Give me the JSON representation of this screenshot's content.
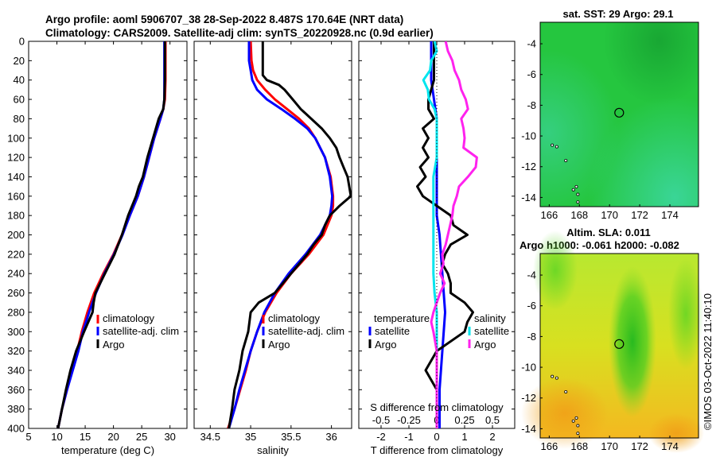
{
  "header": {
    "line1": "Argo profile: aoml 5906707_38 28-Sep-2022 8.487S 170.64E (NRT data)",
    "line2": "Climatology: CARS2009. Satellite-adj clim: synTS_20220928.nc (0.9d earlier)"
  },
  "colors": {
    "climatology": "#ff0000",
    "satellite": "#0000ff",
    "argo": "#000000",
    "sal_satellite": "#00e5ee",
    "sal_argo": "#ff22ee"
  },
  "chart_data": [
    {
      "type": "line",
      "id": "temperature",
      "xlabel": "temperature (deg C)",
      "ylabel": "",
      "xlim": [
        5,
        33
      ],
      "ylim": [
        0,
        400
      ],
      "xticks": [
        5,
        10,
        15,
        20,
        25,
        30
      ],
      "yticks": [
        0,
        20,
        40,
        60,
        80,
        100,
        120,
        140,
        160,
        180,
        200,
        220,
        240,
        260,
        280,
        300,
        320,
        340,
        360,
        380,
        400
      ],
      "legend": [
        "climatology",
        "satellite-adj. clim",
        "Argo"
      ],
      "legend_position": "bottom-right",
      "series": [
        {
          "name": "climatology",
          "color": "#ff0000",
          "depth": [
            0,
            20,
            40,
            60,
            70,
            80,
            100,
            120,
            140,
            160,
            180,
            200,
            220,
            240,
            260,
            280,
            300,
            320,
            340,
            360,
            380,
            400
          ],
          "values": [
            29.2,
            29.2,
            29.2,
            29.1,
            28.8,
            28.3,
            27.2,
            26.3,
            25.4,
            24.3,
            22.9,
            21.5,
            20.0,
            18.2,
            16.6,
            15.4,
            14.4,
            13.6,
            12.7,
            11.8,
            10.9,
            10.2
          ]
        },
        {
          "name": "satellite-adj. clim",
          "color": "#0000ff",
          "depth": [
            0,
            20,
            40,
            60,
            70,
            80,
            100,
            120,
            140,
            160,
            180,
            200,
            220,
            240,
            260,
            280,
            300,
            320,
            340,
            360,
            380,
            400
          ],
          "values": [
            29.0,
            29.0,
            29.0,
            29.0,
            28.8,
            28.3,
            27.2,
            26.3,
            25.4,
            24.3,
            22.9,
            21.6,
            20.1,
            18.4,
            16.9,
            15.7,
            14.6,
            13.8,
            12.8,
            11.8,
            10.9,
            10.2
          ]
        },
        {
          "name": "Argo",
          "color": "#000000",
          "depth": [
            0,
            20,
            40,
            60,
            70,
            80,
            100,
            120,
            140,
            150,
            160,
            180,
            200,
            220,
            240,
            260,
            270,
            280,
            300,
            320,
            340,
            360,
            380,
            400
          ],
          "values": [
            29.1,
            29.1,
            29.1,
            29.0,
            28.8,
            28.0,
            27.0,
            26.0,
            25.2,
            24.5,
            24.0,
            22.6,
            21.5,
            20.2,
            18.5,
            16.8,
            16.5,
            16.3,
            14.8,
            13.4,
            12.4,
            11.6,
            10.9,
            10.2
          ]
        }
      ]
    },
    {
      "type": "line",
      "id": "salinity",
      "xlabel": "salinity",
      "ylabel": "",
      "xlim": [
        34.3,
        36.25
      ],
      "ylim": [
        0,
        400
      ],
      "xticks": [
        34.5,
        35,
        35.5,
        36
      ],
      "legend": [
        "climatology",
        "satellite-adj. clim",
        "Argo"
      ],
      "legend_position": "bottom-right",
      "series": [
        {
          "name": "climatology",
          "color": "#ff0000",
          "depth": [
            0,
            20,
            30,
            40,
            50,
            60,
            70,
            80,
            90,
            100,
            120,
            140,
            160,
            170,
            180,
            200,
            220,
            240,
            260,
            280,
            300,
            320,
            340,
            360,
            380,
            400
          ],
          "values": [
            35.0,
            35.01,
            35.03,
            35.08,
            35.18,
            35.3,
            35.45,
            35.6,
            35.72,
            35.8,
            35.92,
            35.99,
            36.02,
            36.02,
            36.0,
            35.9,
            35.72,
            35.5,
            35.32,
            35.18,
            35.08,
            35.0,
            34.94,
            34.87,
            34.8,
            34.72
          ]
        },
        {
          "name": "satellite-adj. clim",
          "color": "#0000ff",
          "depth": [
            0,
            20,
            30,
            40,
            50,
            60,
            70,
            80,
            90,
            100,
            120,
            140,
            160,
            170,
            180,
            200,
            220,
            240,
            260,
            280,
            300,
            320,
            340,
            360,
            380,
            400
          ],
          "values": [
            34.98,
            34.98,
            35.0,
            35.02,
            35.08,
            35.2,
            35.38,
            35.55,
            35.7,
            35.8,
            35.92,
            35.98,
            36.01,
            36.0,
            35.98,
            35.86,
            35.68,
            35.47,
            35.3,
            35.17,
            35.08,
            35.0,
            34.93,
            34.86,
            34.8,
            34.73
          ]
        },
        {
          "name": "Argo",
          "color": "#000000",
          "depth": [
            0,
            20,
            35,
            40,
            45,
            50,
            60,
            70,
            80,
            90,
            100,
            110,
            120,
            130,
            140,
            150,
            160,
            170,
            180,
            190,
            200,
            210,
            220,
            240,
            260,
            270,
            280,
            300,
            320,
            340,
            360,
            380,
            400
          ],
          "values": [
            35.15,
            35.15,
            35.15,
            35.2,
            35.35,
            35.42,
            35.52,
            35.62,
            35.75,
            35.88,
            35.98,
            36.06,
            36.1,
            36.15,
            36.2,
            36.22,
            36.24,
            36.1,
            35.98,
            35.92,
            35.88,
            35.78,
            35.7,
            35.5,
            35.3,
            35.1,
            35.0,
            34.97,
            34.9,
            34.86,
            34.8,
            34.77,
            34.73
          ]
        }
      ]
    },
    {
      "type": "line",
      "id": "difference",
      "xlabel": "T difference from climatology",
      "top_label": "S difference from climatology",
      "xlim": [
        -2.8,
        2.8
      ],
      "ylim": [
        0,
        400
      ],
      "xticks": [
        -2,
        -1,
        0,
        1,
        2
      ],
      "top_xticks": [
        "-0.5",
        "-0.25",
        "0",
        "0.25",
        "0.5"
      ],
      "legend_temperature_title": "temperature",
      "legend_salinity_title": "salinity",
      "legend_temperature": [
        "satellite",
        "Argo"
      ],
      "legend_salinity": [
        "satellite",
        "Argo"
      ],
      "series": [
        {
          "name": "temperature satellite",
          "color": "#0000ff",
          "depth": [
            0,
            20,
            40,
            60,
            80,
            100,
            140,
            180,
            200,
            240,
            280,
            320,
            360,
            400
          ],
          "values": [
            -0.2,
            -0.2,
            -0.2,
            -0.1,
            0.0,
            0.0,
            0.0,
            0.0,
            0.1,
            0.2,
            0.3,
            0.2,
            0.1,
            0.1
          ]
        },
        {
          "name": "temperature Argo",
          "color": "#000000",
          "depth": [
            0,
            20,
            40,
            60,
            70,
            80,
            90,
            100,
            110,
            120,
            130,
            140,
            150,
            160,
            170,
            180,
            190,
            200,
            210,
            220,
            230,
            240,
            250,
            260,
            270,
            280,
            290,
            300,
            320,
            340,
            360,
            380,
            400
          ],
          "values": [
            -0.1,
            -0.1,
            -0.1,
            -0.3,
            -0.3,
            -0.1,
            -0.5,
            -0.3,
            -0.5,
            -0.3,
            -0.6,
            -0.4,
            -0.7,
            -0.5,
            0.0,
            0.5,
            0.6,
            1.1,
            0.5,
            0.3,
            0.2,
            0.4,
            0.5,
            0.5,
            1.0,
            1.3,
            1.1,
            1.0,
            0.0,
            -0.4,
            0.0,
            0.0,
            0.0
          ]
        },
        {
          "name": "salinity satellite",
          "color": "#00e5ee",
          "depth": [
            0,
            10,
            20,
            30,
            40,
            50,
            60,
            70,
            80,
            100,
            120,
            140,
            160,
            180,
            200,
            220,
            240,
            260,
            280,
            300,
            320,
            340,
            360,
            380,
            400
          ],
          "values": [
            -0.02,
            0.0,
            -0.05,
            -0.06,
            -0.12,
            -0.08,
            -0.07,
            -0.02,
            0.0,
            0.0,
            0.0,
            -0.03,
            -0.03,
            -0.03,
            -0.03,
            -0.03,
            -0.03,
            -0.02,
            0.0,
            0.0,
            0.0,
            0.0,
            0.0,
            0.0,
            0.0
          ]
        },
        {
          "name": "salinity Argo",
          "color": "#ff22ee",
          "depth": [
            0,
            10,
            20,
            30,
            40,
            50,
            60,
            70,
            80,
            90,
            100,
            110,
            120,
            130,
            140,
            150,
            160,
            170,
            180,
            190,
            200,
            210,
            220,
            230,
            240,
            250,
            260,
            270,
            280,
            290,
            300,
            320,
            340,
            360,
            380,
            400
          ],
          "values": [
            0.08,
            0.1,
            0.14,
            0.16,
            0.2,
            0.22,
            0.26,
            0.28,
            0.22,
            0.24,
            0.25,
            0.24,
            0.36,
            0.35,
            0.28,
            0.2,
            0.18,
            0.15,
            0.14,
            0.12,
            0.1,
            0.08,
            0.05,
            0.06,
            0.03,
            0.07,
            0.03,
            0.0,
            -0.03,
            -0.05,
            -0.03,
            0.0,
            0.0,
            0.0,
            0.0,
            0.0
          ]
        }
      ]
    },
    {
      "type": "heatmap",
      "id": "sst_map",
      "title": "sat. SST: 29 Argo: 29.1",
      "xticks": [
        166,
        168,
        170,
        172,
        174
      ],
      "yticks": [
        -4,
        -6,
        -8,
        -10,
        -12,
        -14
      ],
      "xlim": [
        165.4,
        175.9
      ],
      "ylim": [
        -14.6,
        -2.6
      ],
      "marker": [
        170.64,
        -8.487
      ]
    },
    {
      "type": "heatmap",
      "id": "sla_map",
      "title_line1": "Altim. SLA: 0.011",
      "title_line2": "Argo h1000: -0.061 h2000: -0.082",
      "xticks": [
        166,
        168,
        170,
        172,
        174
      ],
      "yticks": [
        -4,
        -6,
        -8,
        -10,
        -12,
        -14
      ],
      "xlim": [
        165.4,
        175.9
      ],
      "ylim": [
        -14.6,
        -2.6
      ],
      "marker": [
        170.64,
        -8.487
      ]
    }
  ],
  "credit": "©IMOS 03-Oct-2022 11:40:10"
}
